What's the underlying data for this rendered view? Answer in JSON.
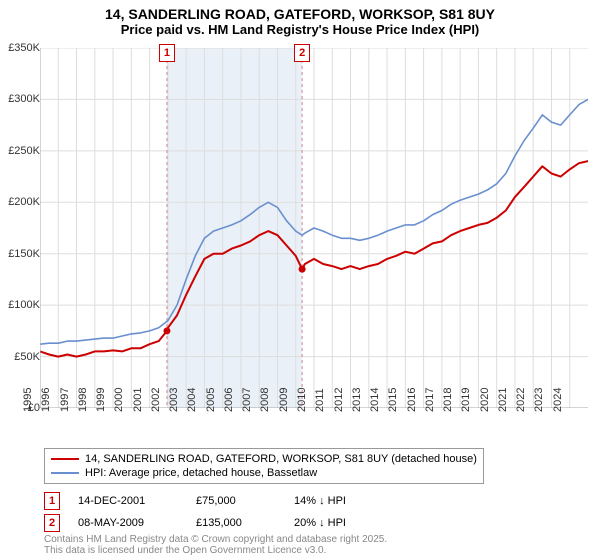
{
  "title": {
    "line1": "14, SANDERLING ROAD, GATEFORD, WORKSOP, S81 8UY",
    "line2": "Price paid vs. HM Land Registry's House Price Index (HPI)"
  },
  "chart": {
    "type": "line",
    "background_color": "#ffffff",
    "grid_color": "#dddddd",
    "shaded_band": {
      "x_start": 2001.95,
      "x_end": 2009.35,
      "fill": "#eaf0f7"
    },
    "axis_font_size": 11,
    "xlim": [
      1995,
      2025
    ],
    "ylim": [
      0,
      350000
    ],
    "y_ticks": [
      0,
      50000,
      100000,
      150000,
      200000,
      250000,
      300000,
      350000
    ],
    "y_tick_labels": [
      "£0",
      "£50K",
      "£100K",
      "£150K",
      "£200K",
      "£250K",
      "£300K",
      "£350K"
    ],
    "x_ticks": [
      1995,
      1996,
      1997,
      1998,
      1999,
      2000,
      2001,
      2002,
      2003,
      2004,
      2005,
      2006,
      2007,
      2008,
      2009,
      2010,
      2011,
      2012,
      2013,
      2014,
      2015,
      2016,
      2017,
      2018,
      2019,
      2020,
      2021,
      2022,
      2023,
      2024
    ],
    "x_tick_labels": [
      "1995",
      "1996",
      "1997",
      "1998",
      "1999",
      "2000",
      "2001",
      "2002",
      "2003",
      "2004",
      "2005",
      "2006",
      "2007",
      "2008",
      "2009",
      "2010",
      "2011",
      "2012",
      "2013",
      "2014",
      "2015",
      "2016",
      "2017",
      "2018",
      "2019",
      "2020",
      "2021",
      "2022",
      "2023",
      "2024"
    ],
    "series": [
      {
        "name": "price_paid",
        "label": "14, SANDERLING ROAD, GATEFORD, WORKSOP, S81 8UY (detached house)",
        "color": "#cc0000",
        "line_width": 2,
        "data": [
          [
            1995,
            55000
          ],
          [
            1995.5,
            52000
          ],
          [
            1996,
            50000
          ],
          [
            1996.5,
            52000
          ],
          [
            1997,
            50000
          ],
          [
            1997.5,
            52000
          ],
          [
            1998,
            55000
          ],
          [
            1998.5,
            55000
          ],
          [
            1999,
            56000
          ],
          [
            1999.5,
            55000
          ],
          [
            2000,
            58000
          ],
          [
            2000.5,
            58000
          ],
          [
            2001,
            62000
          ],
          [
            2001.5,
            65000
          ],
          [
            2001.95,
            75000
          ],
          [
            2002,
            78000
          ],
          [
            2002.5,
            90000
          ],
          [
            2003,
            110000
          ],
          [
            2003.5,
            128000
          ],
          [
            2004,
            145000
          ],
          [
            2004.5,
            150000
          ],
          [
            2005,
            150000
          ],
          [
            2005.5,
            155000
          ],
          [
            2006,
            158000
          ],
          [
            2006.5,
            162000
          ],
          [
            2007,
            168000
          ],
          [
            2007.5,
            172000
          ],
          [
            2008,
            168000
          ],
          [
            2008.5,
            158000
          ],
          [
            2009,
            148000
          ],
          [
            2009.35,
            135000
          ],
          [
            2009.5,
            140000
          ],
          [
            2010,
            145000
          ],
          [
            2010.5,
            140000
          ],
          [
            2011,
            138000
          ],
          [
            2011.5,
            135000
          ],
          [
            2012,
            138000
          ],
          [
            2012.5,
            135000
          ],
          [
            2013,
            138000
          ],
          [
            2013.5,
            140000
          ],
          [
            2014,
            145000
          ],
          [
            2014.5,
            148000
          ],
          [
            2015,
            152000
          ],
          [
            2015.5,
            150000
          ],
          [
            2016,
            155000
          ],
          [
            2016.5,
            160000
          ],
          [
            2017,
            162000
          ],
          [
            2017.5,
            168000
          ],
          [
            2018,
            172000
          ],
          [
            2018.5,
            175000
          ],
          [
            2019,
            178000
          ],
          [
            2019.5,
            180000
          ],
          [
            2020,
            185000
          ],
          [
            2020.5,
            192000
          ],
          [
            2021,
            205000
          ],
          [
            2021.5,
            215000
          ],
          [
            2022,
            225000
          ],
          [
            2022.5,
            235000
          ],
          [
            2023,
            228000
          ],
          [
            2023.5,
            225000
          ],
          [
            2024,
            232000
          ],
          [
            2024.5,
            238000
          ],
          [
            2025,
            240000
          ]
        ]
      },
      {
        "name": "hpi",
        "label": "HPI: Average price, detached house, Bassetlaw",
        "color": "#6a8fd0",
        "line_width": 1.6,
        "data": [
          [
            1995,
            62000
          ],
          [
            1995.5,
            63000
          ],
          [
            1996,
            63000
          ],
          [
            1996.5,
            65000
          ],
          [
            1997,
            65000
          ],
          [
            1997.5,
            66000
          ],
          [
            1998,
            67000
          ],
          [
            1998.5,
            68000
          ],
          [
            1999,
            68000
          ],
          [
            1999.5,
            70000
          ],
          [
            2000,
            72000
          ],
          [
            2000.5,
            73000
          ],
          [
            2001,
            75000
          ],
          [
            2001.5,
            78000
          ],
          [
            2002,
            85000
          ],
          [
            2002.5,
            100000
          ],
          [
            2003,
            125000
          ],
          [
            2003.5,
            148000
          ],
          [
            2004,
            165000
          ],
          [
            2004.5,
            172000
          ],
          [
            2005,
            175000
          ],
          [
            2005.5,
            178000
          ],
          [
            2006,
            182000
          ],
          [
            2006.5,
            188000
          ],
          [
            2007,
            195000
          ],
          [
            2007.5,
            200000
          ],
          [
            2008,
            195000
          ],
          [
            2008.5,
            182000
          ],
          [
            2009,
            172000
          ],
          [
            2009.35,
            168000
          ],
          [
            2009.5,
            170000
          ],
          [
            2010,
            175000
          ],
          [
            2010.5,
            172000
          ],
          [
            2011,
            168000
          ],
          [
            2011.5,
            165000
          ],
          [
            2012,
            165000
          ],
          [
            2012.5,
            163000
          ],
          [
            2013,
            165000
          ],
          [
            2013.5,
            168000
          ],
          [
            2014,
            172000
          ],
          [
            2014.5,
            175000
          ],
          [
            2015,
            178000
          ],
          [
            2015.5,
            178000
          ],
          [
            2016,
            182000
          ],
          [
            2016.5,
            188000
          ],
          [
            2017,
            192000
          ],
          [
            2017.5,
            198000
          ],
          [
            2018,
            202000
          ],
          [
            2018.5,
            205000
          ],
          [
            2019,
            208000
          ],
          [
            2019.5,
            212000
          ],
          [
            2020,
            218000
          ],
          [
            2020.5,
            228000
          ],
          [
            2021,
            245000
          ],
          [
            2021.5,
            260000
          ],
          [
            2022,
            272000
          ],
          [
            2022.5,
            285000
          ],
          [
            2023,
            278000
          ],
          [
            2023.5,
            275000
          ],
          [
            2024,
            285000
          ],
          [
            2024.5,
            295000
          ],
          [
            2025,
            300000
          ]
        ]
      }
    ],
    "event_markers": [
      {
        "id": "1",
        "x": 2001.95,
        "dash_color": "#cc8888"
      },
      {
        "id": "2",
        "x": 2009.35,
        "dash_color": "#cc8888"
      }
    ]
  },
  "legend": {
    "border_color": "#999999",
    "items": [
      {
        "color": "#cc0000",
        "label_key": "chart.series.0.label"
      },
      {
        "color": "#6a8fd0",
        "label_key": "chart.series.1.label"
      }
    ]
  },
  "events": [
    {
      "id": "1",
      "date": "14-DEC-2001",
      "price": "£75,000",
      "hpi": "14% ↓ HPI"
    },
    {
      "id": "2",
      "date": "08-MAY-2009",
      "price": "£135,000",
      "hpi": "20% ↓ HPI"
    }
  ],
  "footnote": {
    "line1": "Contains HM Land Registry data © Crown copyright and database right 2025.",
    "line2": "This data is licensed under the Open Government Licence v3.0."
  }
}
